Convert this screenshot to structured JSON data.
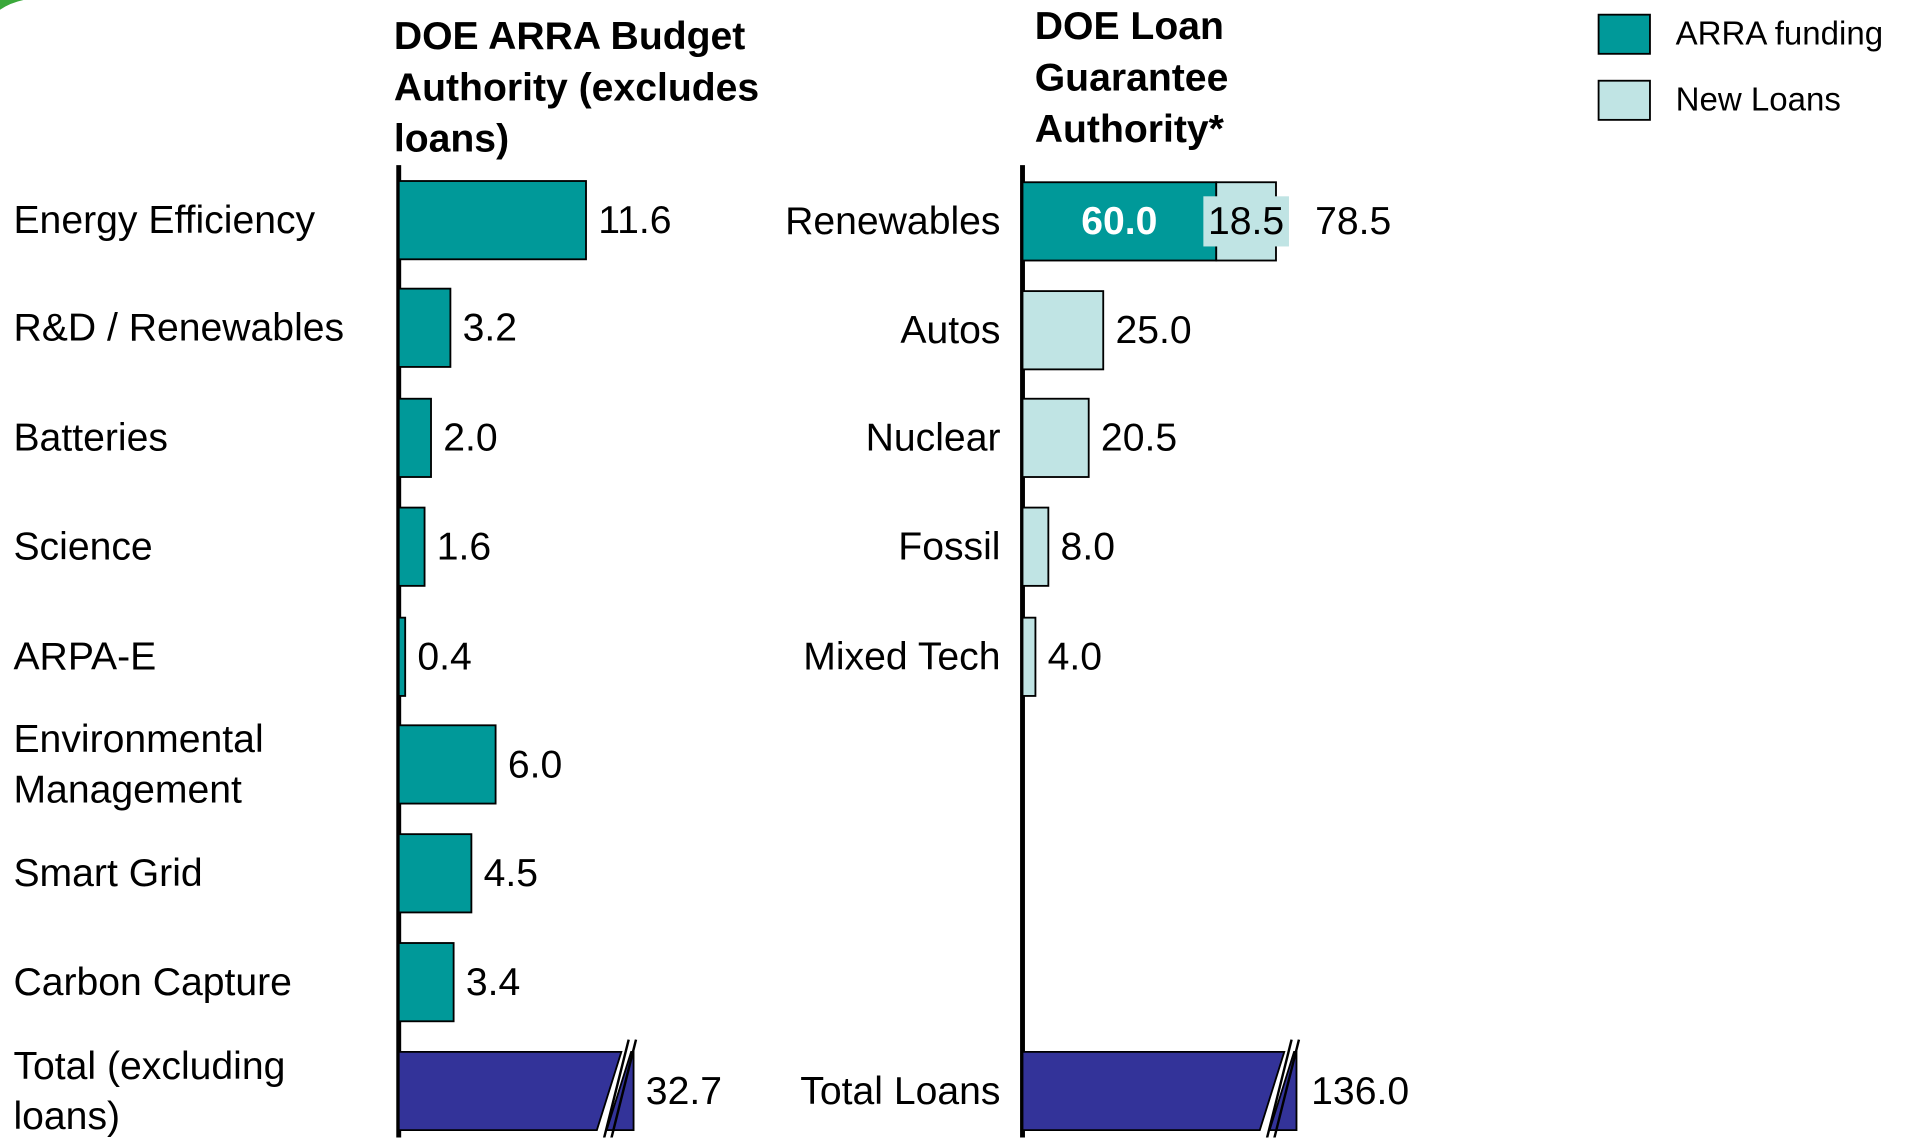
{
  "chart_data": [
    {
      "type": "bar",
      "orientation": "horizontal",
      "title": "DOE ARRA Budget Authority (excludes loans)",
      "categories": [
        "Energy Efficiency",
        "R&D / Renewables",
        "Batteries",
        "Science",
        "ARPA-E",
        "Environmental Management",
        "Smart Grid",
        "Carbon Capture"
      ],
      "values": [
        11.6,
        3.2,
        2.0,
        1.6,
        0.4,
        6.0,
        4.5,
        3.4
      ],
      "value_labels": [
        "11.6",
        "3.2",
        "2.0",
        "1.6",
        "0.4",
        "6.0",
        "4.5",
        "3.4"
      ],
      "color": "#009999",
      "total": {
        "label": "Total (excluding loans)",
        "value": 32.7,
        "value_label": "32.7",
        "color": "#333399"
      }
    },
    {
      "type": "bar",
      "orientation": "horizontal",
      "stacked": true,
      "title": "DOE Loan Guarantee Authority*",
      "categories": [
        "Renewables",
        "Autos",
        "Nuclear",
        "Fossil",
        "Mixed Tech"
      ],
      "series": [
        {
          "name": "ARRA funding",
          "color": "#009999",
          "values": [
            60.0,
            null,
            null,
            null,
            null
          ],
          "value_labels": [
            "60.0",
            null,
            null,
            null,
            null
          ]
        },
        {
          "name": "New Loans",
          "color": "#c0e4e4",
          "values": [
            18.5,
            25.0,
            20.5,
            8.0,
            4.0
          ],
          "value_labels": [
            "18.5",
            "25.0",
            "20.5",
            "8.0",
            "4.0"
          ]
        }
      ],
      "totals": [
        78.5,
        null,
        null,
        null,
        null
      ],
      "total": {
        "label": "Total Loans",
        "value": 136.0,
        "value_label": "136.0",
        "color": "#333399"
      },
      "legend": "upper right"
    }
  ]
}
